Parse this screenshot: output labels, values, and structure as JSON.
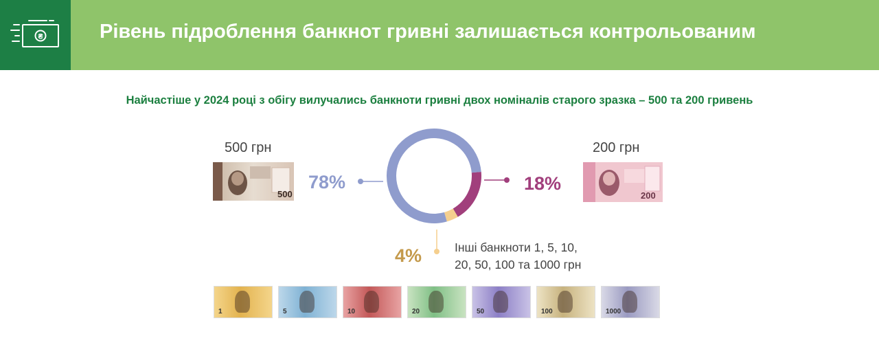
{
  "header": {
    "title": "Рівень підроблення банкнот гривні залишається контрольованим"
  },
  "subtitle": "Найчастіше у 2024 році з обігу вилучались банкноти гривні двох номіналів старого зразка – 500 та 200 гривень",
  "labels": {
    "b500": "500 грн",
    "b200": "200 грн",
    "others": [
      "Інші банкноти 1, 5, 10,",
      "20, 50, 100 та 1000 грн"
    ]
  },
  "banknotes": {
    "b500_value": "500",
    "b200_value": "200",
    "strip": [
      "1",
      "5",
      "10",
      "20",
      "50",
      "100",
      "1000"
    ]
  },
  "colors": {
    "header_bg": "#8fc46a",
    "icon_box": "#1d7f45",
    "slice_500": "#8f9ccd",
    "slice_200": "#a13f7c",
    "slice_other": "#f5cf8e",
    "pct_other": "#c49a4c"
  },
  "chart_data": {
    "type": "pie",
    "donut": true,
    "title": "Найчастіше у 2024 році з обігу вилучались банкноти гривні двох номіналів старого зразка – 500 та 200 гривень",
    "categories": [
      "500 грн",
      "200 грн",
      "Інші банкноти 1, 5, 10, 20, 50, 100 та 1000 грн"
    ],
    "values": [
      78,
      18,
      4
    ],
    "value_labels": [
      "78%",
      "18%",
      "4%"
    ],
    "unit": "%"
  }
}
